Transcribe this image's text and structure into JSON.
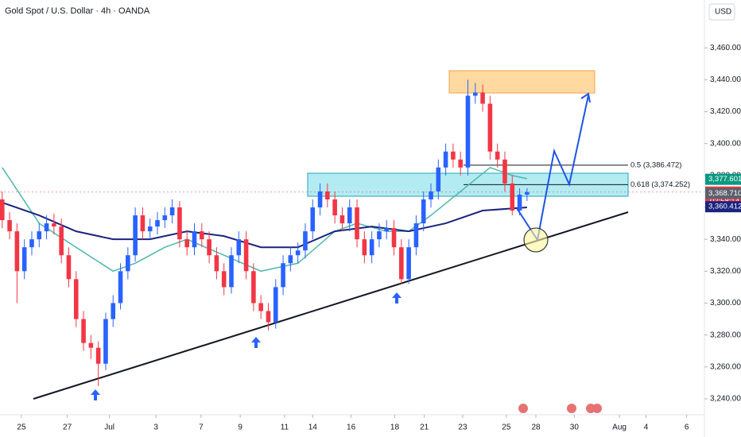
{
  "chart_data": {
    "type": "candlestick",
    "title": "Gold Spot / U.S. Dollar · 4h · OANDA",
    "currency": "USD",
    "up_color": "#2962ff",
    "down_color": "#f23645",
    "candles": [
      [
        3365,
        3370,
        3347,
        3352
      ],
      [
        3352,
        3357,
        3340,
        3345
      ],
      [
        3345,
        3350,
        3300,
        3320
      ],
      [
        3320,
        3340,
        3315,
        3335
      ],
      [
        3335,
        3345,
        3330,
        3340
      ],
      [
        3340,
        3350,
        3335,
        3345
      ],
      [
        3345,
        3355,
        3340,
        3350
      ],
      [
        3350,
        3356,
        3343,
        3348
      ],
      [
        3348,
        3353,
        3325,
        3330
      ],
      [
        3330,
        3335,
        3310,
        3315
      ],
      [
        3315,
        3320,
        3285,
        3290
      ],
      [
        3290,
        3295,
        3270,
        3275
      ],
      [
        3275,
        3280,
        3265,
        3272
      ],
      [
        3272,
        3276,
        3248,
        3262
      ],
      [
        3262,
        3294,
        3258,
        3290
      ],
      [
        3290,
        3305,
        3285,
        3300
      ],
      [
        3300,
        3325,
        3296,
        3320
      ],
      [
        3320,
        3335,
        3315,
        3330
      ],
      [
        3330,
        3360,
        3326,
        3355
      ],
      [
        3355,
        3360,
        3340,
        3345
      ],
      [
        3345,
        3353,
        3340,
        3348
      ],
      [
        3348,
        3357,
        3343,
        3352
      ],
      [
        3352,
        3360,
        3347,
        3355
      ],
      [
        3355,
        3365,
        3350,
        3360
      ],
      [
        3360,
        3364,
        3335,
        3340
      ],
      [
        3340,
        3345,
        3330,
        3335
      ],
      [
        3335,
        3350,
        3330,
        3345
      ],
      [
        3345,
        3350,
        3335,
        3340
      ],
      [
        3340,
        3345,
        3325,
        3330
      ],
      [
        3330,
        3335,
        3315,
        3320
      ],
      [
        3320,
        3325,
        3305,
        3310
      ],
      [
        3310,
        3335,
        3306,
        3330
      ],
      [
        3330,
        3345,
        3325,
        3340
      ],
      [
        3340,
        3345,
        3315,
        3320
      ],
      [
        3320,
        3325,
        3295,
        3300
      ],
      [
        3300,
        3305,
        3290,
        3295
      ],
      [
        3295,
        3300,
        3283,
        3288
      ],
      [
        3288,
        3315,
        3284,
        3310
      ],
      [
        3310,
        3330,
        3305,
        3325
      ],
      [
        3325,
        3335,
        3320,
        3330
      ],
      [
        3330,
        3338,
        3325,
        3333
      ],
      [
        3333,
        3350,
        3328,
        3345
      ],
      [
        3345,
        3365,
        3340,
        3360
      ],
      [
        3360,
        3375,
        3355,
        3370
      ],
      [
        3370,
        3375,
        3360,
        3365
      ],
      [
        3365,
        3370,
        3350,
        3355
      ],
      [
        3355,
        3360,
        3345,
        3350
      ],
      [
        3350,
        3365,
        3345,
        3360
      ],
      [
        3360,
        3365,
        3335,
        3340
      ],
      [
        3340,
        3345,
        3325,
        3330
      ],
      [
        3330,
        3345,
        3325,
        3340
      ],
      [
        3340,
        3350,
        3335,
        3345
      ],
      [
        3345,
        3352,
        3340,
        3347
      ],
      [
        3347,
        3352,
        3330,
        3335
      ],
      [
        3335,
        3340,
        3312,
        3315
      ],
      [
        3315,
        3340,
        3312,
        3335
      ],
      [
        3335,
        3355,
        3330,
        3350
      ],
      [
        3350,
        3370,
        3345,
        3365
      ],
      [
        3365,
        3375,
        3360,
        3370
      ],
      [
        3370,
        3390,
        3365,
        3385
      ],
      [
        3385,
        3400,
        3380,
        3395
      ],
      [
        3395,
        3400,
        3385,
        3390
      ],
      [
        3390,
        3395,
        3380,
        3385
      ],
      [
        3385,
        3440,
        3380,
        3430
      ],
      [
        3430,
        3438,
        3425,
        3432
      ],
      [
        3432,
        3437,
        3420,
        3425
      ],
      [
        3425,
        3430,
        3390,
        3395
      ],
      [
        3395,
        3400,
        3385,
        3390
      ],
      [
        3390,
        3395,
        3370,
        3375
      ],
      [
        3375,
        3380,
        3355,
        3358
      ],
      [
        3358,
        3372,
        3355,
        3368
      ],
      [
        3368,
        3372,
        3364,
        3369.625
      ]
    ],
    "series": [
      {
        "color": "#4db6ac",
        "x": [
          0,
          5,
          10,
          15,
          18,
          22,
          25,
          30,
          35,
          40,
          45,
          48,
          52,
          55,
          58,
          62,
          66,
          69,
          71
        ],
        "values": [
          3385,
          3350,
          3335,
          3320,
          3325,
          3335,
          3340,
          3330,
          3320,
          3325,
          3345,
          3350,
          3345,
          3345,
          3355,
          3370,
          3385,
          3380,
          3378
        ]
      },
      {
        "color": "#1a237e",
        "x": [
          0,
          5,
          10,
          15,
          20,
          25,
          30,
          35,
          40,
          45,
          50,
          55,
          60,
          65,
          71
        ],
        "values": [
          3363,
          3355,
          3345,
          3340,
          3340,
          3345,
          3342,
          3335,
          3335,
          3345,
          3348,
          3345,
          3350,
          3358,
          3360
        ]
      }
    ],
    "xlim": [
      -0.3,
      95
    ],
    "xticks": [
      {
        "value": 2.6,
        "label": "25"
      },
      {
        "value": 8.8,
        "label": "27"
      },
      {
        "value": 14.5,
        "label": "Jul"
      },
      {
        "value": 20.8,
        "label": "3"
      },
      {
        "value": 26.9,
        "label": "7"
      },
      {
        "value": 32.2,
        "label": "9"
      },
      {
        "value": 38.2,
        "label": "11"
      },
      {
        "value": 42,
        "label": "14"
      },
      {
        "value": 47.2,
        "label": "16"
      },
      {
        "value": 53.1,
        "label": "18"
      },
      {
        "value": 57.1,
        "label": "21"
      },
      {
        "value": 62.3,
        "label": "23"
      },
      {
        "value": 68.2,
        "label": "25"
      },
      {
        "value": 72.2,
        "label": "28"
      },
      {
        "value": 77.4,
        "label": "30"
      },
      {
        "value": 83.5,
        "label": "Aug"
      },
      {
        "value": 87.1,
        "label": "4"
      },
      {
        "value": 92.6,
        "label": "6"
      }
    ],
    "ylim": [
      3231,
      3490
    ],
    "yticks": [
      {
        "value": 3240,
        "label": "3,240.000"
      },
      {
        "value": 3260,
        "label": "3,260.000"
      },
      {
        "value": 3280,
        "label": "3,280.000"
      },
      {
        "value": 3300,
        "label": "3,300.000"
      },
      {
        "value": 3320,
        "label": "3,320.000"
      },
      {
        "value": 3340,
        "label": "3,340.000"
      },
      {
        "value": 3360,
        "label": "3,360.000"
      },
      {
        "value": 3380,
        "label": "3,380.000"
      },
      {
        "value": 3400,
        "label": "3,400.000"
      },
      {
        "value": 3420,
        "label": "3,420.000"
      },
      {
        "value": 3440,
        "label": "3,440.000"
      },
      {
        "value": 3460,
        "label": "3,460.000"
      }
    ],
    "fib_levels": [
      {
        "value": 3386.472,
        "label": "0.5 (3,386.472)"
      },
      {
        "value": 3374.252,
        "label": "0.618 (3,374.252)"
      }
    ],
    "price_tags": [
      {
        "value": 3377.601,
        "label": "3,377.601",
        "color": "#089981"
      },
      {
        "value": 3369.625,
        "label": "3,369.625",
        "color": "#f23645"
      },
      {
        "value": 3368.71,
        "label": "3,368.710",
        "color": "#5d606b"
      },
      {
        "value": 3360.412,
        "label": "3,360.412",
        "color": "#1a237e"
      }
    ],
    "countdown": "02:58:14"
  }
}
